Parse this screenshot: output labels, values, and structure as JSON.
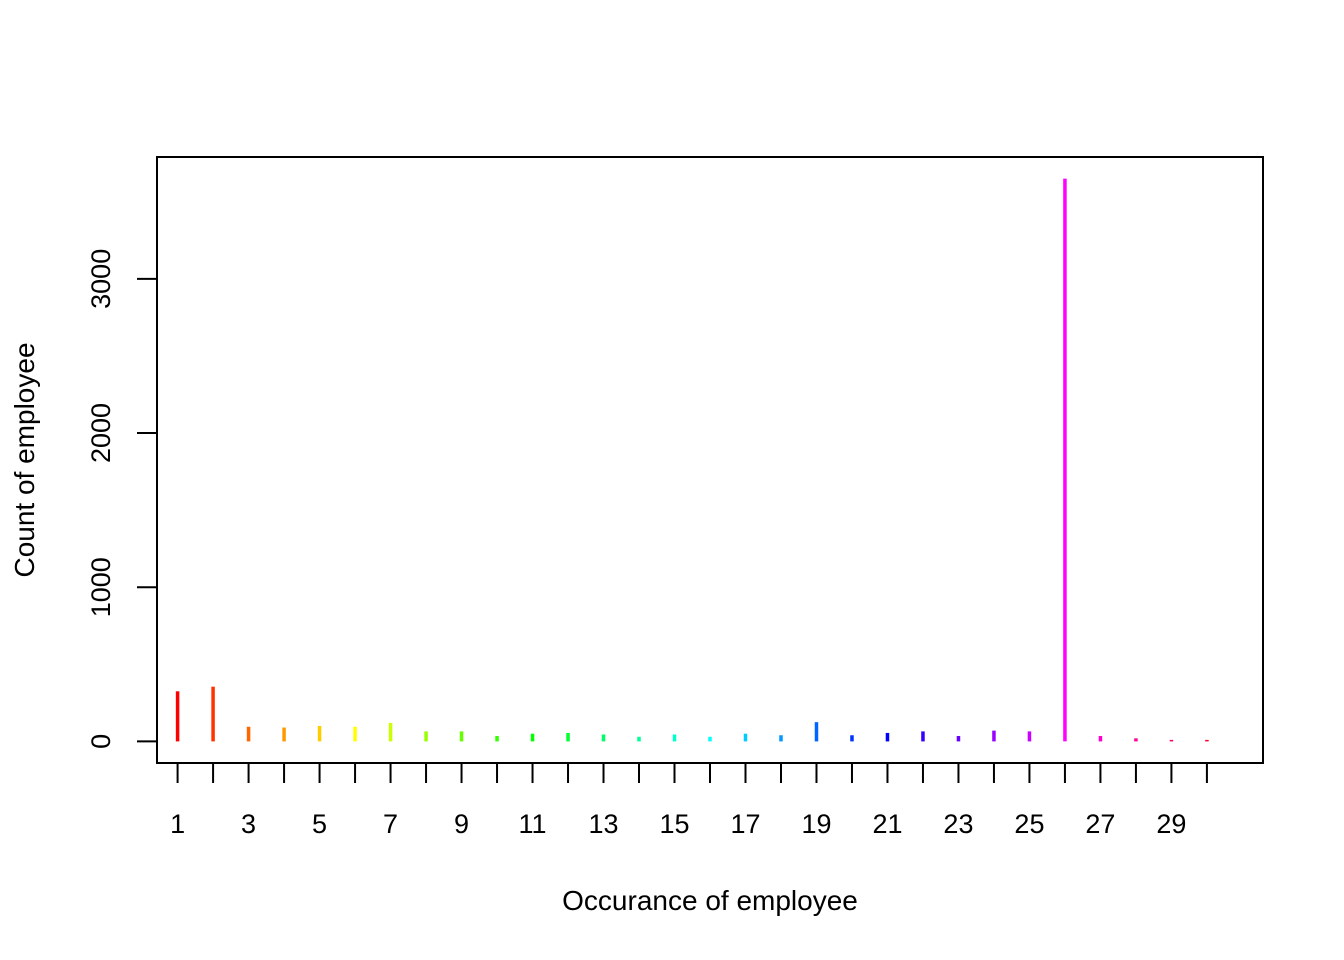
{
  "chart_data": {
    "type": "bar",
    "xlabel": "Occurance of employee",
    "ylabel": "Count of employee",
    "categories": [
      1,
      2,
      3,
      4,
      5,
      6,
      7,
      8,
      9,
      10,
      11,
      12,
      13,
      14,
      15,
      16,
      17,
      18,
      19,
      20,
      21,
      22,
      23,
      24,
      25,
      26,
      27,
      28,
      29,
      30
    ],
    "x_tick_labels": [
      "1",
      "3",
      "5",
      "7",
      "9",
      "11",
      "13",
      "15",
      "17",
      "19",
      "21",
      "23",
      "25",
      "27",
      "29"
    ],
    "values": [
      325,
      355,
      95,
      90,
      100,
      95,
      120,
      65,
      65,
      35,
      50,
      55,
      45,
      30,
      45,
      30,
      50,
      40,
      125,
      40,
      55,
      65,
      35,
      70,
      65,
      3650,
      35,
      20,
      10,
      10
    ],
    "colors": [
      "#FF0000",
      "#FF3300",
      "#FF6600",
      "#FF9900",
      "#FFCC00",
      "#FFFF00",
      "#CCFF00",
      "#99FF00",
      "#66FF00",
      "#33FF00",
      "#00FF00",
      "#00FF33",
      "#00FF66",
      "#00FF99",
      "#00FFCC",
      "#00FFFF",
      "#00CCFF",
      "#0099FF",
      "#0066FF",
      "#0033FF",
      "#0000FF",
      "#3300FF",
      "#6600FF",
      "#9900FF",
      "#CC00FF",
      "#FF00FF",
      "#FF00CC",
      "#FF0099",
      "#FF0066",
      "#FF0033"
    ],
    "y_ticks": [
      0,
      1000,
      2000,
      3000
    ],
    "y_tick_labels": [
      "0",
      "1000",
      "2000",
      "3000"
    ],
    "ylim": [
      -140,
      3790
    ],
    "grid": false,
    "legend": "none"
  }
}
